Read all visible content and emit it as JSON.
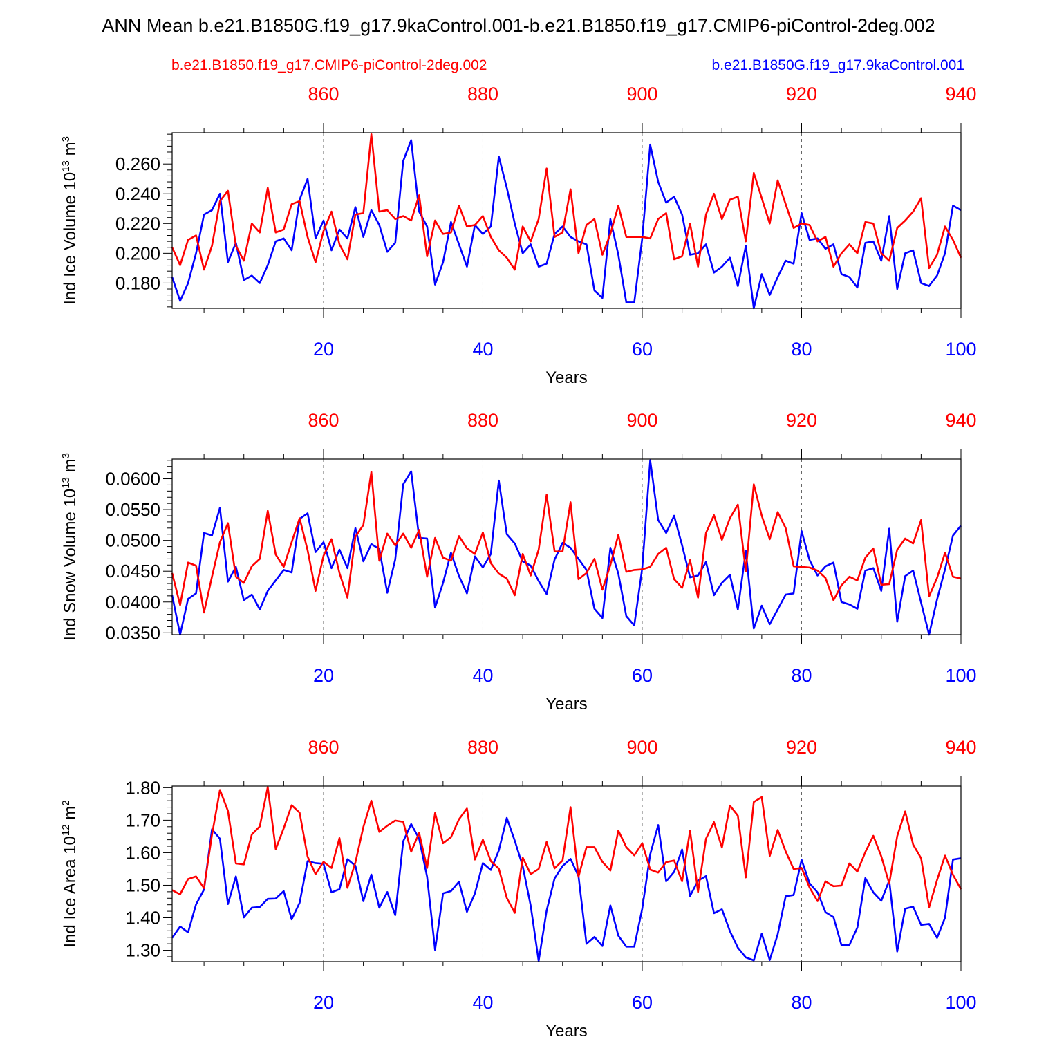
{
  "title": "ANN Mean b.e21.B1850G.f19_g17.9kaControl.001-b.e21.B1850.f19_g17.CMIP6-piControl-2deg.002",
  "colors": {
    "case": "#0000ff",
    "control": "#ff0000",
    "axes": "#000000",
    "refline": "#666666"
  },
  "legend": {
    "control": "b.e21.B1850.f19_g17.CMIP6-piControl-2deg.002",
    "case": "b.e21.B1850G.f19_g17.9kaControl.001"
  },
  "chart_data": [
    {
      "type": "line",
      "name": "ice-volume",
      "ylabel": "Ind Ice Volume 10",
      "ylabel_exponent": "13",
      "ylabel_unit": "m",
      "ylabel_unit_exponent": "3",
      "xlabel": "Years",
      "xlim": [
        1,
        100
      ],
      "ylim": [
        0.163,
        0.281
      ],
      "yticks": [
        0.18,
        0.2,
        0.22,
        0.24,
        0.26
      ],
      "ytick_labels": [
        "0.180",
        "0.200",
        "0.220",
        "0.240",
        "0.260"
      ],
      "xticks_bottom": [
        20,
        40,
        60,
        80,
        100
      ],
      "xticks_top_labels": [
        "860",
        "880",
        "900",
        "920",
        "940"
      ],
      "series": [
        {
          "name": "b.e21.B1850G.f19_g17.9kaControl.001",
          "color_key": "case",
          "values": [
            0.184,
            0.168,
            0.18,
            0.2,
            0.226,
            0.229,
            0.24,
            0.194,
            0.207,
            0.182,
            0.185,
            0.18,
            0.192,
            0.208,
            0.21,
            0.202,
            0.236,
            0.25,
            0.21,
            0.222,
            0.202,
            0.216,
            0.21,
            0.231,
            0.211,
            0.229,
            0.219,
            0.201,
            0.207,
            0.262,
            0.276,
            0.228,
            0.218,
            0.179,
            0.194,
            0.221,
            0.206,
            0.191,
            0.219,
            0.213,
            0.218,
            0.265,
            0.244,
            0.22,
            0.2,
            0.206,
            0.191,
            0.193,
            0.213,
            0.218,
            0.211,
            0.208,
            0.206,
            0.175,
            0.17,
            0.223,
            0.199,
            0.167,
            0.167,
            0.21,
            0.273,
            0.248,
            0.234,
            0.238,
            0.226,
            0.199,
            0.2,
            0.206,
            0.187,
            0.191,
            0.197,
            0.178,
            0.205,
            0.163,
            0.186,
            0.172,
            0.184,
            0.195,
            0.193,
            0.227,
            0.209,
            0.21,
            0.203,
            0.206,
            0.186,
            0.184,
            0.177,
            0.207,
            0.208,
            0.195,
            0.225,
            0.176,
            0.2,
            0.202,
            0.18,
            0.178,
            0.185,
            0.2,
            0.232,
            0.229
          ]
        },
        {
          "name": "b.e21.B1850.f19_g17.CMIP6-piControl-2deg.002",
          "color_key": "control",
          "values": [
            0.204,
            0.192,
            0.209,
            0.212,
            0.189,
            0.205,
            0.235,
            0.242,
            0.205,
            0.195,
            0.22,
            0.214,
            0.244,
            0.214,
            0.216,
            0.233,
            0.235,
            0.211,
            0.194,
            0.215,
            0.228,
            0.206,
            0.196,
            0.226,
            0.227,
            0.28,
            0.228,
            0.229,
            0.223,
            0.225,
            0.222,
            0.239,
            0.198,
            0.222,
            0.213,
            0.214,
            0.232,
            0.218,
            0.219,
            0.225,
            0.211,
            0.202,
            0.197,
            0.189,
            0.218,
            0.208,
            0.223,
            0.257,
            0.211,
            0.214,
            0.243,
            0.2,
            0.219,
            0.223,
            0.199,
            0.213,
            0.232,
            0.211,
            0.211,
            0.211,
            0.21,
            0.223,
            0.227,
            0.196,
            0.198,
            0.22,
            0.191,
            0.226,
            0.24,
            0.223,
            0.236,
            0.238,
            0.208,
            0.254,
            0.237,
            0.22,
            0.249,
            0.233,
            0.217,
            0.22,
            0.219,
            0.208,
            0.211,
            0.191,
            0.2,
            0.206,
            0.2,
            0.221,
            0.22,
            0.2,
            0.195,
            0.217,
            0.222,
            0.228,
            0.237,
            0.19,
            0.199,
            0.218,
            0.209,
            0.197
          ]
        }
      ]
    },
    {
      "type": "line",
      "name": "snow-volume",
      "ylabel": "Ind Snow Volume 10",
      "ylabel_exponent": "13",
      "ylabel_unit": "m",
      "ylabel_unit_exponent": "3",
      "xlabel": "Years",
      "xlim": [
        1,
        100
      ],
      "ylim": [
        0.0347,
        0.0632
      ],
      "yticks": [
        0.035,
        0.04,
        0.045,
        0.05,
        0.055,
        0.06
      ],
      "ytick_labels": [
        "0.0350",
        "0.0400",
        "0.0450",
        "0.0500",
        "0.0550",
        "0.0600"
      ],
      "xticks_bottom": [
        20,
        40,
        60,
        80,
        100
      ],
      "xticks_top_labels": [
        "860",
        "880",
        "900",
        "920",
        "940"
      ],
      "series": [
        {
          "name": "b.e21.B1850G.f19_g17.9kaControl.001",
          "color_key": "case",
          "values": [
            0.0411,
            0.0347,
            0.0405,
            0.0414,
            0.0512,
            0.0508,
            0.0553,
            0.0433,
            0.0457,
            0.0403,
            0.0412,
            0.0388,
            0.0418,
            0.0435,
            0.0452,
            0.0448,
            0.0535,
            0.0544,
            0.0481,
            0.0497,
            0.0455,
            0.0485,
            0.0455,
            0.052,
            0.0466,
            0.0494,
            0.0486,
            0.0415,
            0.0469,
            0.0591,
            0.0612,
            0.0504,
            0.0503,
            0.0391,
            0.0431,
            0.048,
            0.0442,
            0.0414,
            0.0474,
            0.0456,
            0.0478,
            0.0597,
            0.051,
            0.0495,
            0.0466,
            0.0459,
            0.0434,
            0.0413,
            0.0469,
            0.0496,
            0.0488,
            0.047,
            0.0452,
            0.0389,
            0.0374,
            0.0488,
            0.0446,
            0.0377,
            0.0362,
            0.0455,
            0.063,
            0.0533,
            0.0512,
            0.054,
            0.0492,
            0.044,
            0.0443,
            0.0465,
            0.0411,
            0.0431,
            0.0444,
            0.0388,
            0.0483,
            0.0357,
            0.0394,
            0.0364,
            0.0388,
            0.0412,
            0.0414,
            0.0515,
            0.0468,
            0.0443,
            0.0458,
            0.0464,
            0.04,
            0.0396,
            0.0389,
            0.0451,
            0.0455,
            0.0418,
            0.0519,
            0.0368,
            0.0442,
            0.0451,
            0.0399,
            0.0347,
            0.0404,
            0.0453,
            0.0508,
            0.0524
          ]
        },
        {
          "name": "b.e21.B1850.f19_g17.CMIP6-piControl-2deg.002",
          "color_key": "control",
          "values": [
            0.0447,
            0.0395,
            0.0464,
            0.0459,
            0.0383,
            0.0441,
            0.0497,
            0.0528,
            0.0441,
            0.0431,
            0.0458,
            0.047,
            0.0548,
            0.0477,
            0.0457,
            0.0497,
            0.0536,
            0.0484,
            0.0418,
            0.0475,
            0.0502,
            0.0447,
            0.0407,
            0.0506,
            0.0525,
            0.0611,
            0.0467,
            0.0511,
            0.0492,
            0.0511,
            0.0488,
            0.0517,
            0.0441,
            0.0504,
            0.0472,
            0.0467,
            0.0507,
            0.0487,
            0.0478,
            0.0513,
            0.0463,
            0.0446,
            0.0438,
            0.0411,
            0.0478,
            0.0443,
            0.0485,
            0.0574,
            0.0482,
            0.0482,
            0.0562,
            0.0437,
            0.0447,
            0.047,
            0.042,
            0.046,
            0.0509,
            0.0449,
            0.0452,
            0.0453,
            0.0457,
            0.0478,
            0.0488,
            0.0437,
            0.0423,
            0.0468,
            0.0407,
            0.0512,
            0.0541,
            0.0501,
            0.0536,
            0.0558,
            0.045,
            0.0591,
            0.054,
            0.0502,
            0.0546,
            0.052,
            0.0458,
            0.0457,
            0.0456,
            0.0451,
            0.0439,
            0.0403,
            0.0427,
            0.0441,
            0.0435,
            0.0472,
            0.0487,
            0.0428,
            0.0429,
            0.0485,
            0.0503,
            0.0495,
            0.0533,
            0.0409,
            0.0439,
            0.048,
            0.0441,
            0.0438
          ]
        }
      ]
    },
    {
      "type": "line",
      "name": "ice-area",
      "ylabel": "Ind Ice Area 10",
      "ylabel_exponent": "12",
      "ylabel_unit": "m",
      "ylabel_unit_exponent": "2",
      "xlabel": "Years",
      "xlim": [
        1,
        100
      ],
      "ylim": [
        1.265,
        1.805
      ],
      "yticks": [
        1.3,
        1.4,
        1.5,
        1.6,
        1.7,
        1.8
      ],
      "ytick_labels": [
        "1.30",
        "1.40",
        "1.50",
        "1.60",
        "1.70",
        "1.80"
      ],
      "xticks_bottom": [
        20,
        40,
        60,
        80,
        100
      ],
      "xticks_top_labels": [
        "860",
        "880",
        "900",
        "920",
        "940"
      ],
      "series": [
        {
          "name": "b.e21.B1850G.f19_g17.9kaControl.001",
          "color_key": "case",
          "values": [
            1.338,
            1.373,
            1.355,
            1.441,
            1.487,
            1.672,
            1.643,
            1.442,
            1.527,
            1.401,
            1.431,
            1.433,
            1.458,
            1.459,
            1.482,
            1.395,
            1.446,
            1.574,
            1.568,
            1.566,
            1.478,
            1.488,
            1.58,
            1.56,
            1.451,
            1.533,
            1.431,
            1.479,
            1.408,
            1.635,
            1.688,
            1.643,
            1.526,
            1.301,
            1.475,
            1.482,
            1.511,
            1.418,
            1.475,
            1.568,
            1.547,
            1.607,
            1.707,
            1.637,
            1.559,
            1.437,
            1.267,
            1.422,
            1.521,
            1.559,
            1.581,
            1.528,
            1.32,
            1.341,
            1.313,
            1.438,
            1.345,
            1.311,
            1.311,
            1.428,
            1.595,
            1.685,
            1.512,
            1.541,
            1.61,
            1.467,
            1.514,
            1.528,
            1.414,
            1.426,
            1.359,
            1.308,
            1.278,
            1.269,
            1.351,
            1.27,
            1.349,
            1.466,
            1.47,
            1.578,
            1.506,
            1.478,
            1.417,
            1.402,
            1.316,
            1.316,
            1.37,
            1.522,
            1.478,
            1.452,
            1.515,
            1.296,
            1.428,
            1.434,
            1.378,
            1.381,
            1.338,
            1.4,
            1.579,
            1.583
          ]
        },
        {
          "name": "b.e21.B1850.f19_g17.CMIP6-piControl-2deg.002",
          "color_key": "control",
          "values": [
            1.485,
            1.472,
            1.519,
            1.527,
            1.491,
            1.655,
            1.793,
            1.729,
            1.567,
            1.564,
            1.656,
            1.681,
            1.802,
            1.611,
            1.675,
            1.746,
            1.723,
            1.588,
            1.534,
            1.572,
            1.553,
            1.645,
            1.492,
            1.57,
            1.679,
            1.76,
            1.664,
            1.683,
            1.699,
            1.695,
            1.603,
            1.661,
            1.553,
            1.722,
            1.629,
            1.648,
            1.703,
            1.736,
            1.579,
            1.64,
            1.574,
            1.551,
            1.461,
            1.415,
            1.585,
            1.534,
            1.55,
            1.633,
            1.552,
            1.576,
            1.74,
            1.526,
            1.617,
            1.617,
            1.572,
            1.545,
            1.668,
            1.617,
            1.592,
            1.629,
            1.548,
            1.539,
            1.571,
            1.576,
            1.512,
            1.668,
            1.479,
            1.643,
            1.694,
            1.616,
            1.745,
            1.714,
            1.524,
            1.756,
            1.771,
            1.59,
            1.67,
            1.604,
            1.55,
            1.553,
            1.493,
            1.451,
            1.512,
            1.497,
            1.499,
            1.567,
            1.542,
            1.602,
            1.652,
            1.589,
            1.505,
            1.651,
            1.727,
            1.625,
            1.583,
            1.432,
            1.516,
            1.591,
            1.532,
            1.488
          ]
        }
      ]
    }
  ]
}
